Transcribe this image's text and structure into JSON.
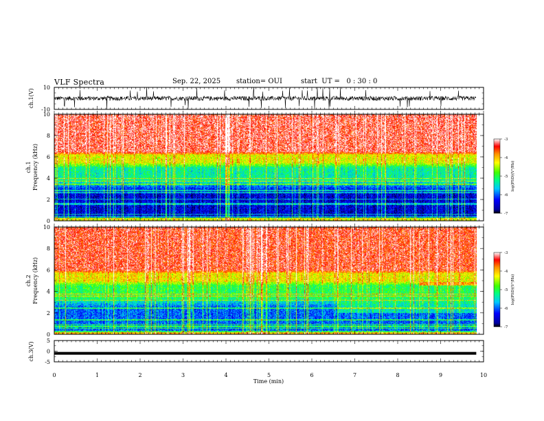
{
  "header": {
    "title": "VLF Spectra",
    "date": "Sep. 22, 2025",
    "station": "station= OUI",
    "start": "start  UT =   0 : 30 : 0"
  },
  "chart_data": [
    {
      "type": "line",
      "name": "ch1-waveform",
      "ylabel": "ch.1(V)",
      "ylim": [
        -10,
        10
      ],
      "yticks": [
        "10",
        "-10"
      ],
      "x_range_min": [
        0,
        9.83
      ],
      "baseline_v": 0,
      "typical_amplitude_v": 2,
      "spike_amplitude_v": 10,
      "line_color": "#000000"
    },
    {
      "type": "heatmap",
      "name": "ch1-spectrogram",
      "ylabel_line1": "ch.1",
      "ylabel_line2": "Frequency  (kHz)",
      "ylim": [
        0,
        10
      ],
      "yticks": [
        "0",
        "2",
        "4",
        "6",
        "8",
        "10"
      ],
      "x_range_min": [
        0,
        9.83
      ],
      "bands_khz": [
        {
          "from": 0,
          "to": 0.4,
          "level": -4.3
        },
        {
          "from": 0.4,
          "to": 3.8,
          "level": -6.5
        },
        {
          "from": 3.8,
          "to": 5.5,
          "level": -5.3
        },
        {
          "from": 5.5,
          "to": 6.5,
          "level": -4.3
        },
        {
          "from": 6.5,
          "to": 10,
          "level": -3.3
        }
      ],
      "colorbar": {
        "label": "log(PSD)(V²/Hz)",
        "ticks": [
          "-3",
          "-4",
          "-5",
          "-6",
          "-7"
        ],
        "range": [
          -7,
          -3
        ]
      }
    },
    {
      "type": "heatmap",
      "name": "ch2-spectrogram",
      "ylabel_line1": "ch.2",
      "ylabel_line2": "Frequency  (kHz)",
      "ylim": [
        0,
        10
      ],
      "yticks": [
        "0",
        "2",
        "4",
        "6",
        "8",
        "10"
      ],
      "x_range_min": [
        0,
        9.83
      ],
      "bands_khz": [
        {
          "from": 0,
          "to": 0.3,
          "level": -4.0
        },
        {
          "from": 0.3,
          "to": 3.5,
          "level": -6.0
        },
        {
          "from": 3.5,
          "to": 5.0,
          "level": -5.0
        },
        {
          "from": 5.0,
          "to": 6.0,
          "level": -4.2
        },
        {
          "from": 6.0,
          "to": 10,
          "level": -3.4
        }
      ],
      "features": [
        {
          "from_min": 6.6,
          "to_min": 9.83,
          "f_from_khz": 2.0,
          "f_to_khz": 4.5,
          "level": -5.0
        },
        {
          "from_min": 8.5,
          "to_min": 9.83,
          "f_from_khz": 4.6,
          "f_to_khz": 4.9,
          "level": -3.3
        }
      ],
      "colorbar": {
        "label": "log(PSD)(V²/Hz)",
        "ticks": [
          "-3",
          "-4",
          "-5",
          "-6",
          "-7"
        ],
        "range": [
          -7,
          -3
        ]
      }
    },
    {
      "type": "line",
      "name": "ch3-waveform",
      "ylabel": "ch.3(V)",
      "ylim": [
        -5,
        5
      ],
      "yticks": [
        "5",
        "0",
        "-5"
      ],
      "x_range_min": [
        0,
        9.83
      ],
      "level_v": -1,
      "line_color": "#000000"
    }
  ],
  "x_axis": {
    "label": "Time  (min)",
    "ticks": [
      "0",
      "1",
      "2",
      "3",
      "4",
      "5",
      "6",
      "7",
      "8",
      "9",
      "10"
    ],
    "xlim": [
      0,
      10
    ]
  }
}
